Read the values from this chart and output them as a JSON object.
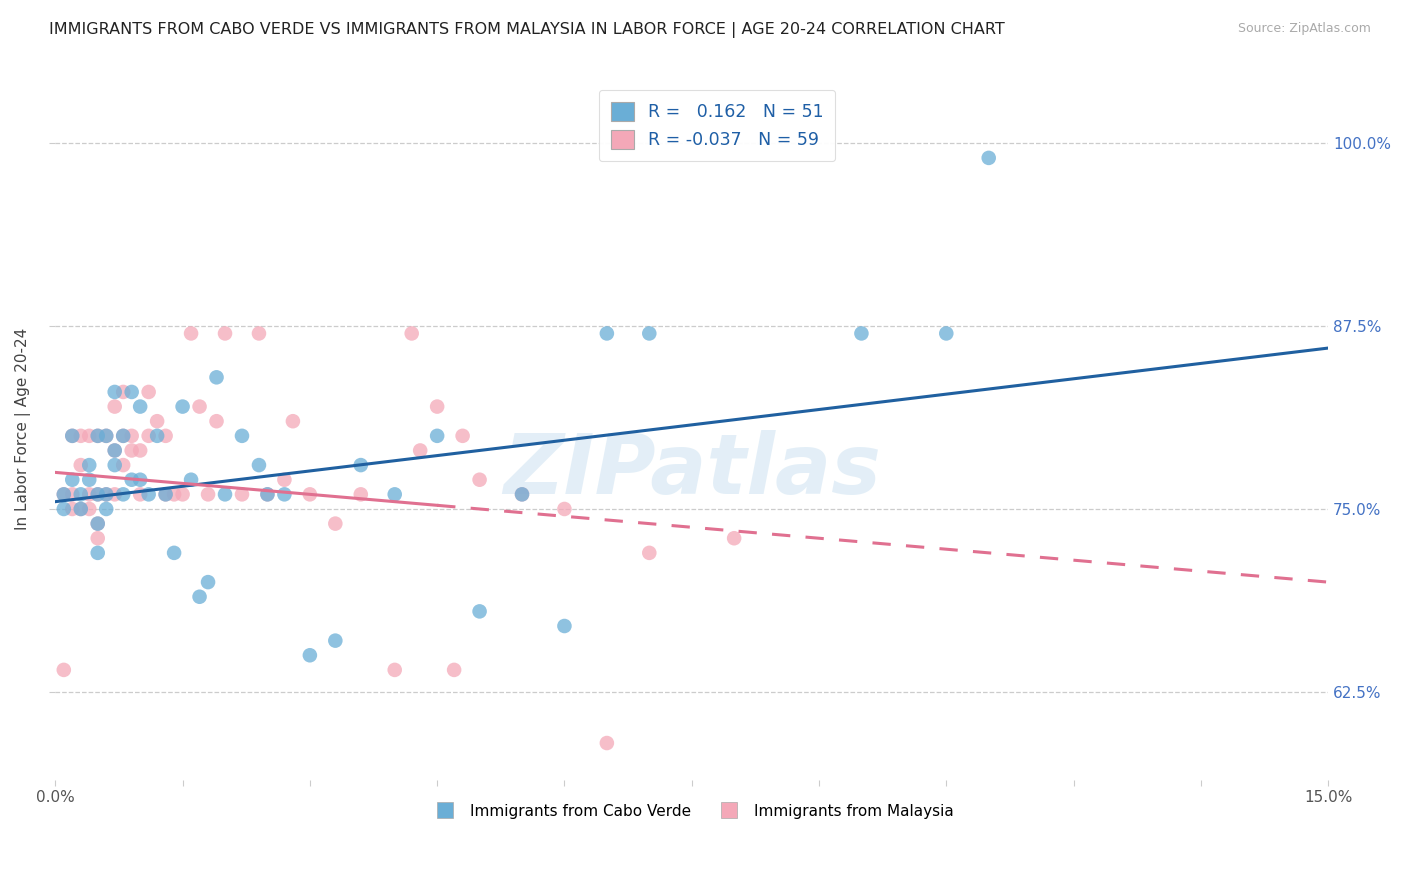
{
  "title": "IMMIGRANTS FROM CABO VERDE VS IMMIGRANTS FROM MALAYSIA IN LABOR FORCE | AGE 20-24 CORRELATION CHART",
  "source": "Source: ZipAtlas.com",
  "ylabel": "In Labor Force | Age 20-24",
  "yticks": [
    0.625,
    0.75,
    0.875,
    1.0
  ],
  "ytick_labels": [
    "62.5%",
    "75.0%",
    "87.5%",
    "100.0%"
  ],
  "xmin": 0.0,
  "xmax": 0.15,
  "ymin": 0.565,
  "ymax": 1.045,
  "legend_R_blue": "0.162",
  "legend_N_blue": "51",
  "legend_R_pink": "-0.037",
  "legend_N_pink": "59",
  "color_blue": "#6aaed6",
  "color_pink": "#f4a8b8",
  "trendline_blue": "#2060a0",
  "trendline_pink": "#e07090",
  "watermark": "ZIPatlas",
  "cabo_verde_x": [
    0.001,
    0.001,
    0.002,
    0.002,
    0.003,
    0.003,
    0.004,
    0.004,
    0.005,
    0.005,
    0.005,
    0.005,
    0.006,
    0.006,
    0.006,
    0.007,
    0.007,
    0.007,
    0.008,
    0.008,
    0.009,
    0.009,
    0.01,
    0.01,
    0.011,
    0.012,
    0.013,
    0.014,
    0.015,
    0.016,
    0.017,
    0.018,
    0.019,
    0.02,
    0.022,
    0.024,
    0.025,
    0.027,
    0.03,
    0.033,
    0.036,
    0.04,
    0.045,
    0.05,
    0.055,
    0.06,
    0.065,
    0.07,
    0.095,
    0.105,
    0.11
  ],
  "cabo_verde_y": [
    0.75,
    0.76,
    0.77,
    0.8,
    0.75,
    0.76,
    0.77,
    0.78,
    0.72,
    0.74,
    0.76,
    0.8,
    0.75,
    0.76,
    0.8,
    0.78,
    0.79,
    0.83,
    0.76,
    0.8,
    0.77,
    0.83,
    0.77,
    0.82,
    0.76,
    0.8,
    0.76,
    0.72,
    0.82,
    0.77,
    0.69,
    0.7,
    0.84,
    0.76,
    0.8,
    0.78,
    0.76,
    0.76,
    0.65,
    0.66,
    0.78,
    0.76,
    0.8,
    0.68,
    0.76,
    0.67,
    0.87,
    0.87,
    0.87,
    0.87,
    0.99
  ],
  "malaysia_x": [
    0.001,
    0.001,
    0.002,
    0.002,
    0.002,
    0.003,
    0.003,
    0.003,
    0.004,
    0.004,
    0.004,
    0.005,
    0.005,
    0.005,
    0.005,
    0.006,
    0.006,
    0.007,
    0.007,
    0.007,
    0.008,
    0.008,
    0.008,
    0.009,
    0.009,
    0.01,
    0.01,
    0.011,
    0.011,
    0.012,
    0.013,
    0.013,
    0.014,
    0.015,
    0.016,
    0.017,
    0.018,
    0.019,
    0.02,
    0.022,
    0.024,
    0.025,
    0.027,
    0.028,
    0.03,
    0.033,
    0.036,
    0.04,
    0.042,
    0.043,
    0.045,
    0.047,
    0.048,
    0.05,
    0.055,
    0.06,
    0.065,
    0.07,
    0.08
  ],
  "malaysia_y": [
    0.64,
    0.76,
    0.75,
    0.76,
    0.8,
    0.75,
    0.78,
    0.8,
    0.75,
    0.76,
    0.8,
    0.73,
    0.74,
    0.76,
    0.8,
    0.76,
    0.8,
    0.76,
    0.79,
    0.82,
    0.78,
    0.8,
    0.83,
    0.79,
    0.8,
    0.76,
    0.79,
    0.8,
    0.83,
    0.81,
    0.76,
    0.8,
    0.76,
    0.76,
    0.87,
    0.82,
    0.76,
    0.81,
    0.87,
    0.76,
    0.87,
    0.76,
    0.77,
    0.81,
    0.76,
    0.74,
    0.76,
    0.64,
    0.87,
    0.79,
    0.82,
    0.64,
    0.8,
    0.77,
    0.76,
    0.75,
    0.59,
    0.72,
    0.73
  ],
  "trendline_blue_x0": 0.0,
  "trendline_blue_y0": 0.755,
  "trendline_blue_x1": 0.15,
  "trendline_blue_y1": 0.86,
  "trendline_pink_x0": 0.0,
  "trendline_pink_y0": 0.775,
  "trendline_pink_x1": 0.15,
  "trendline_pink_y1": 0.7,
  "trendline_pink_solid_end": 0.045
}
